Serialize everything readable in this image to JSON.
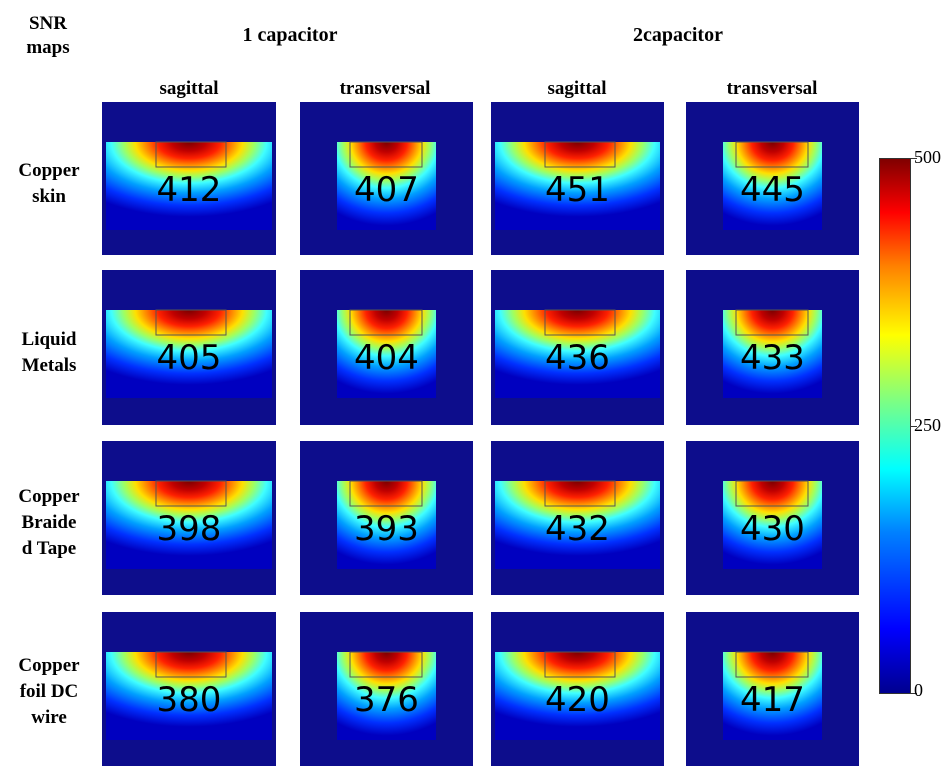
{
  "header": {
    "corner": "SNR\nmaps",
    "groups": [
      "1 capacitor",
      "2capacitor"
    ],
    "views": [
      "sagittal",
      "transversal",
      "sagittal",
      "transversal"
    ]
  },
  "rows": [
    "Copper\nskin",
    "Liquid\nMetals",
    "Copper\nBraide\nd Tape",
    "Copper\nfoil DC\nwire"
  ],
  "chart_data": {
    "type": "heatmap",
    "colormap": "jet",
    "colorbar": {
      "min": 0,
      "max": 500,
      "ticks": [
        "0",
        "250",
        "500"
      ]
    },
    "columns": [
      "sagittal",
      "transversal",
      "sagittal",
      "transversal"
    ],
    "column_groups": [
      "1 capacitor",
      "1 capacitor",
      "2capacitor",
      "2capacitor"
    ],
    "rows": [
      "Copper skin",
      "Liquid Metals",
      "Copper Braided Tape",
      "Copper foil DC wire"
    ],
    "values": [
      [
        "412",
        "407",
        "451",
        "445"
      ],
      [
        "405",
        "404",
        "436",
        "433"
      ],
      [
        "398",
        "393",
        "432",
        "430"
      ],
      [
        "380",
        "376",
        "420",
        "417"
      ]
    ]
  },
  "colors": {
    "background": "#0d0d8c",
    "jet_dark_red": "#800000",
    "jet_dark_blue": "#00008f"
  }
}
